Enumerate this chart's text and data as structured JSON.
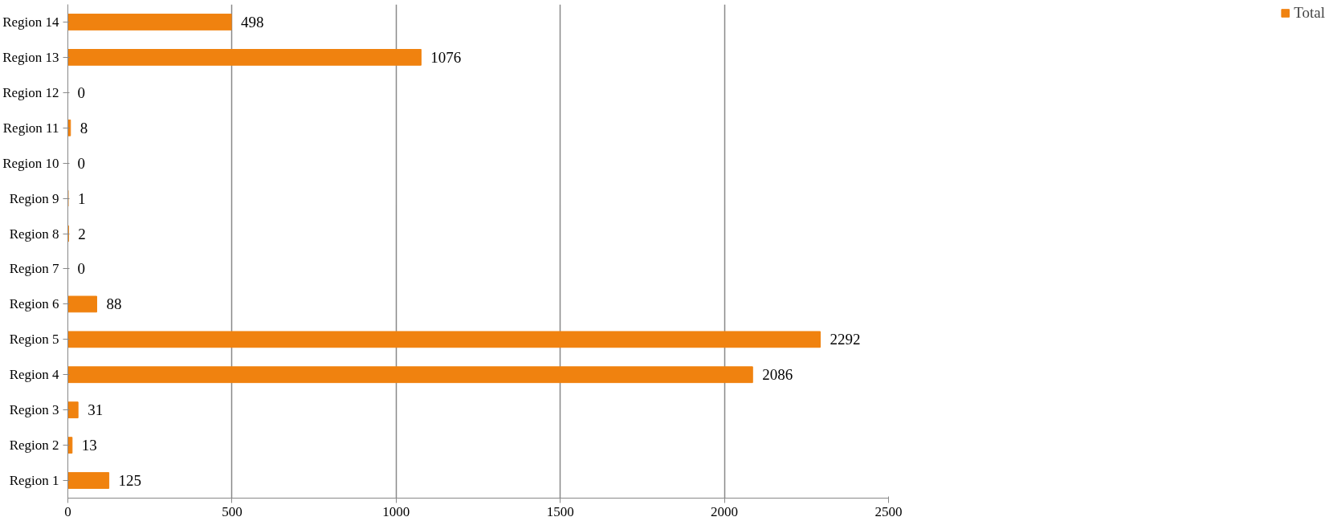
{
  "chart_data": {
    "type": "bar",
    "orientation": "horizontal",
    "categories": [
      "Region 14",
      "Region 13",
      "Region 12",
      "Region 11",
      "Region 10",
      "Region 9",
      "Region 8",
      "Region 7",
      "Region 6",
      "Region 5",
      "Region 4",
      "Region 3",
      "Region 2",
      "Region 1"
    ],
    "series": [
      {
        "name": "Total",
        "color": "#f0820f",
        "values": [
          498,
          1076,
          0,
          8,
          0,
          1,
          2,
          0,
          88,
          2292,
          2086,
          31,
          13,
          125
        ]
      }
    ],
    "xlim": [
      0,
      2500
    ],
    "xticks": [
      0,
      500,
      1000,
      1500,
      2000,
      2500
    ],
    "grid": "x",
    "legend": "right",
    "data_labels": true
  }
}
